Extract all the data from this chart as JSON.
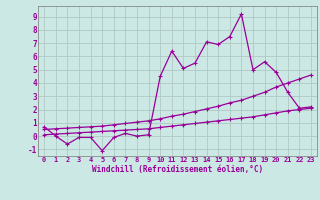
{
  "x": [
    0,
    1,
    2,
    3,
    4,
    5,
    6,
    7,
    8,
    9,
    10,
    11,
    12,
    13,
    14,
    15,
    16,
    17,
    18,
    19,
    20,
    21,
    22,
    23
  ],
  "line_zigzag": [
    0.7,
    0.0,
    -0.6,
    -0.1,
    -0.1,
    -1.1,
    -0.1,
    0.2,
    0.0,
    0.1,
    4.5,
    6.4,
    5.1,
    5.5,
    7.1,
    6.9,
    7.5,
    9.2,
    5.0,
    5.6,
    4.8,
    3.3,
    2.1,
    2.2
  ],
  "line_trend1": [
    0.1,
    0.15,
    0.2,
    0.25,
    0.3,
    0.35,
    0.4,
    0.45,
    0.5,
    0.55,
    0.65,
    0.75,
    0.85,
    0.95,
    1.05,
    1.15,
    1.25,
    1.35,
    1.45,
    1.6,
    1.75,
    1.9,
    2.0,
    2.1
  ],
  "line_trend2": [
    0.5,
    0.55,
    0.6,
    0.65,
    0.7,
    0.75,
    0.85,
    0.95,
    1.05,
    1.15,
    1.3,
    1.5,
    1.65,
    1.85,
    2.05,
    2.25,
    2.5,
    2.7,
    3.0,
    3.3,
    3.7,
    4.0,
    4.3,
    4.6
  ],
  "bg_color": "#cce8e4",
  "line_color": "#990099",
  "grid_color": "#b0c8c4",
  "xlabel": "Windchill (Refroidissement éolien,°C)",
  "ylim": [
    -1.5,
    9.8
  ],
  "xlim": [
    -0.5,
    23.5
  ],
  "yticks": [
    -1,
    0,
    1,
    2,
    3,
    4,
    5,
    6,
    7,
    8,
    9
  ],
  "xticks": [
    0,
    1,
    2,
    3,
    4,
    5,
    6,
    7,
    8,
    9,
    10,
    11,
    12,
    13,
    14,
    15,
    16,
    17,
    18,
    19,
    20,
    21,
    22,
    23
  ]
}
